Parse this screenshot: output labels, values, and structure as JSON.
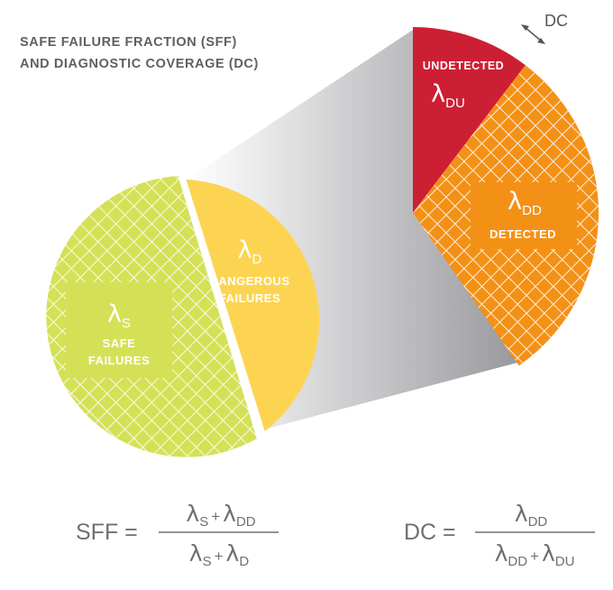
{
  "title": {
    "line1": "SAFE FAILURE FRACTION (SFF)",
    "line2": "AND DIAGNOSTIC COVERAGE (DC)"
  },
  "colors": {
    "safe": "#d4e157",
    "dangerous": "#fdd452",
    "undetected": "#cd1f34",
    "detected": "#f39117",
    "hatch": "#ffffff",
    "funnel": "#b9b9bb",
    "text_gray": "#707070"
  },
  "pie_left": {
    "safe": {
      "symbol": "λ",
      "subscript": "S",
      "label_line1": "SAFE",
      "label_line2": "FAILURES"
    },
    "dangerous": {
      "symbol": "λ",
      "subscript": "D",
      "label_line1": "DANGEROUS",
      "label_line2": "FAILURES"
    }
  },
  "pie_right": {
    "undetected": {
      "label": "UNDETECTED",
      "symbol": "λ",
      "subscript": "DU"
    },
    "detected": {
      "symbol": "λ",
      "subscript": "DD",
      "label": "DETECTED"
    },
    "dc_label": "DC"
  },
  "formulas": {
    "sff": {
      "lhs": "SFF =",
      "numerator": [
        {
          "sym": "λ",
          "sub": "S"
        },
        {
          "op": "+"
        },
        {
          "sym": "λ",
          "sub": "DD"
        }
      ],
      "denominator": [
        {
          "sym": "λ",
          "sub": "S"
        },
        {
          "op": "+"
        },
        {
          "sym": "λ",
          "sub": "D"
        }
      ]
    },
    "dc": {
      "lhs": "DC =",
      "numerator": [
        {
          "sym": "λ",
          "sub": "DD"
        }
      ],
      "denominator": [
        {
          "sym": "λ",
          "sub": "DD"
        },
        {
          "op": "+"
        },
        {
          "sym": "λ",
          "sub": "DU"
        }
      ]
    }
  }
}
